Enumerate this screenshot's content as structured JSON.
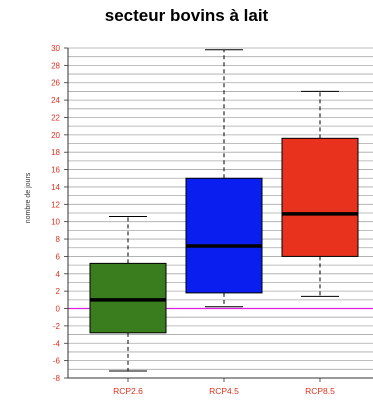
{
  "chart_data": {
    "type": "boxplot",
    "title": "secteur bovins à lait",
    "ylabel": "nombre de jours",
    "xlabel": "",
    "ylim": [
      -8,
      30
    ],
    "yticks": [
      -8,
      -6,
      -4,
      -2,
      0,
      2,
      4,
      6,
      8,
      10,
      12,
      14,
      16,
      18,
      20,
      22,
      24,
      26,
      28,
      30
    ],
    "grid": true,
    "reference_line": {
      "y": 0,
      "color": "#e020e0"
    },
    "categories": [
      "RCP2.6",
      "RCP4.5",
      "RCP8.5"
    ],
    "series": [
      {
        "category": "RCP2.6",
        "color": "#3a7d1e",
        "whisker_low": -7.2,
        "q1": -2.8,
        "median": 1.0,
        "q3": 5.2,
        "whisker_high": 10.6
      },
      {
        "category": "RCP4.5",
        "color": "#0a1ef0",
        "whisker_low": 0.2,
        "q1": 1.8,
        "median": 7.2,
        "q3": 15.0,
        "whisker_high": 29.8
      },
      {
        "category": "RCP8.5",
        "color": "#e8321e",
        "whisker_low": 1.4,
        "q1": 6.0,
        "median": 10.9,
        "q3": 19.6,
        "whisker_high": 25.0
      }
    ]
  }
}
